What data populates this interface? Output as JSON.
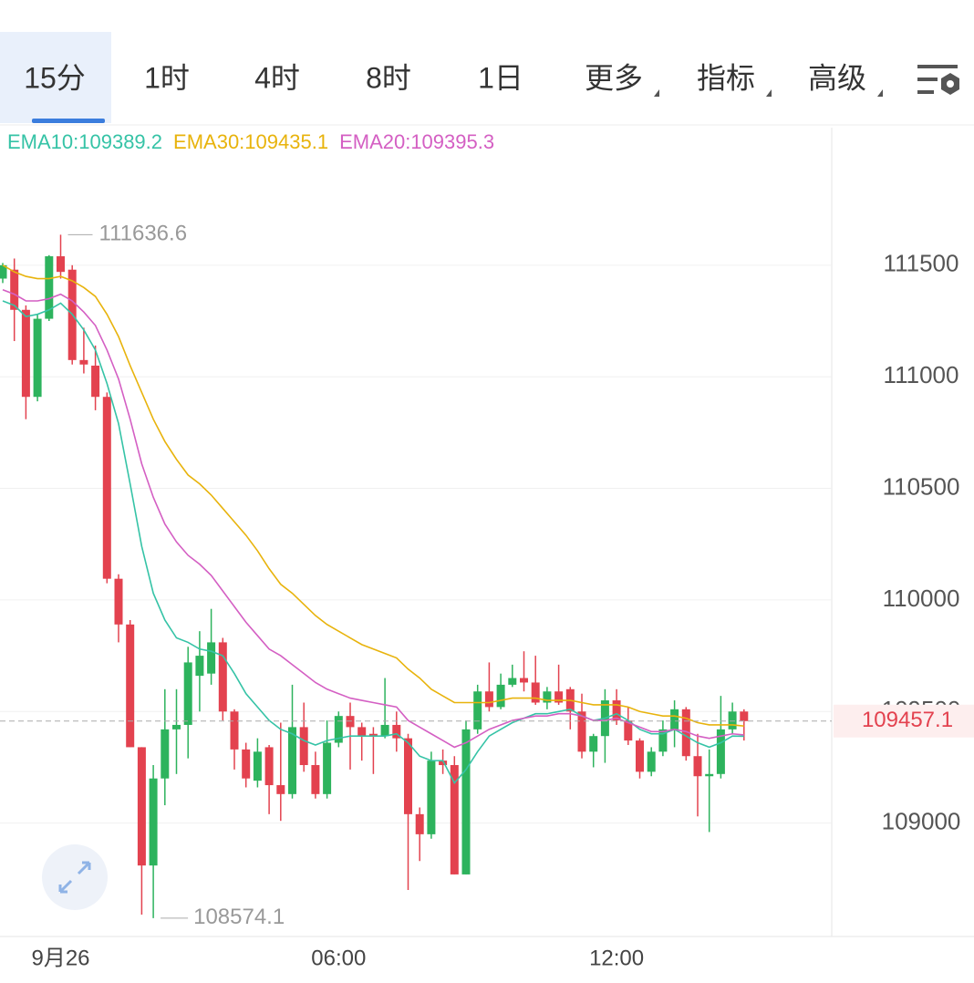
{
  "tabs": [
    "15分",
    "1时",
    "4时",
    "8时",
    "1日",
    "更多",
    "指标",
    "高级"
  ],
  "chart_data": {
    "type": "candlestick",
    "categories": [
      null,
      null,
      null,
      null,
      null,
      "9月26",
      null,
      null,
      null,
      null,
      null,
      null,
      null,
      null,
      null,
      null,
      null,
      null,
      null,
      null,
      null,
      null,
      null,
      null,
      null,
      null,
      null,
      null,
      null,
      "06:00",
      null,
      null,
      null,
      null,
      null,
      null,
      null,
      null,
      null,
      null,
      null,
      null,
      null,
      null,
      null,
      null,
      null,
      null,
      null,
      null,
      null,
      null,
      null,
      "12:00",
      null,
      null,
      null,
      null,
      null,
      null,
      null,
      null,
      null,
      null,
      null
    ],
    "open": [
      111440,
      111480,
      111300,
      110910,
      111260,
      111540,
      111480,
      111075,
      111050,
      110910,
      110095,
      109890,
      109340,
      108810,
      109200,
      109420,
      109440,
      109660,
      109670,
      109810,
      109500,
      109330,
      109190,
      109340,
      109170,
      109130,
      109430,
      109260,
      109130,
      109360,
      109480,
      109430,
      109400,
      109390,
      109440,
      109380,
      109040,
      108950,
      109280,
      109260,
      108770,
      109420,
      109590,
      109520,
      109620,
      109650,
      109630,
      109540,
      109590,
      109600,
      109500,
      109320,
      109390,
      109550,
      109460,
      109370,
      109230,
      109320,
      109420,
      109510,
      109300,
      109210,
      109220,
      109420,
      109500
    ],
    "high": [
      111510,
      111530,
      111320,
      111280,
      111545,
      111636.6,
      111500,
      111220,
      111140,
      110930,
      110115,
      109910,
      109340,
      109260,
      109600,
      109600,
      109790,
      109860,
      109960,
      109830,
      109510,
      109360,
      109380,
      109350,
      109450,
      109620,
      109540,
      109320,
      109460,
      109500,
      109540,
      109450,
      109430,
      109650,
      109500,
      109400,
      109070,
      109320,
      109330,
      109300,
      109460,
      109620,
      109720,
      109670,
      109710,
      109770,
      109750,
      109610,
      109710,
      109610,
      109580,
      109400,
      109600,
      109600,
      109520,
      109380,
      109340,
      109460,
      109550,
      109520,
      109400,
      109330,
      109570,
      109540,
      109510
    ],
    "low": [
      111420,
      111160,
      110810,
      110890,
      111250,
      111440,
      111055,
      111015,
      110850,
      110075,
      109810,
      109340,
      108590,
      108574.1,
      109080,
      109220,
      109290,
      109500,
      109620,
      109460,
      109240,
      109160,
      109160,
      109040,
      109010,
      109110,
      109230,
      109110,
      109110,
      109340,
      109240,
      109280,
      109220,
      109380,
      109320,
      108700,
      108830,
      108930,
      109220,
      108770,
      108770,
      109400,
      109500,
      109510,
      109610,
      109590,
      109530,
      109510,
      109530,
      109420,
      109290,
      109250,
      109270,
      109440,
      109350,
      109200,
      109210,
      109300,
      109340,
      109280,
      109030,
      108960,
      109200,
      109400,
      109370
    ],
    "close": [
      111500,
      111300,
      110910,
      111260,
      111540,
      111470,
      111075,
      111055,
      110910,
      110095,
      109890,
      109340,
      108810,
      109200,
      109420,
      109440,
      109720,
      109750,
      109810,
      109500,
      109330,
      109200,
      109320,
      109170,
      109130,
      109430,
      109260,
      109130,
      109360,
      109480,
      109430,
      109390,
      109390,
      109440,
      109380,
      109040,
      108950,
      109280,
      109260,
      108770,
      109420,
      109590,
      109520,
      109620,
      109650,
      109630,
      109540,
      109590,
      109540,
      109500,
      109320,
      109390,
      109550,
      109460,
      109370,
      109230,
      109320,
      109420,
      109510,
      109300,
      109210,
      109220,
      109420,
      109500,
      109457.1
    ],
    "up_color": "#2db35d",
    "down_color": "#e3424f",
    "series": [
      {
        "name": "EMA10:109389.2",
        "color": "#35c3a6",
        "values": [
          111340,
          111320,
          111270,
          111280,
          111300,
          111330,
          111280,
          111210,
          111120,
          110970,
          110790,
          110520,
          110240,
          110030,
          109910,
          109830,
          109810,
          109780,
          109770,
          109750,
          109670,
          109580,
          109520,
          109460,
          109420,
          109400,
          109370,
          109350,
          109370,
          109380,
          109390,
          109390,
          109390,
          109390,
          109400,
          109360,
          109300,
          109280,
          109280,
          109180,
          109240,
          109320,
          109390,
          109420,
          109450,
          109470,
          109490,
          109490,
          109500,
          109510,
          109480,
          109460,
          109470,
          109490,
          109460,
          109420,
          109400,
          109400,
          109420,
          109390,
          109360,
          109340,
          109360,
          109390,
          109389.2
        ]
      },
      {
        "name": "EMA30:109435.1",
        "color": "#e8b30c",
        "values": [
          111500,
          111470,
          111450,
          111440,
          111440,
          111450,
          111430,
          111400,
          111360,
          111280,
          111180,
          111050,
          110930,
          110810,
          110710,
          110630,
          110560,
          110520,
          110470,
          110410,
          110350,
          110290,
          110220,
          110140,
          110070,
          110030,
          109980,
          109930,
          109890,
          109860,
          109830,
          109800,
          109780,
          109760,
          109740,
          109690,
          109650,
          109600,
          109570,
          109540,
          109540,
          109540,
          109540,
          109550,
          109560,
          109560,
          109560,
          109550,
          109550,
          109550,
          109540,
          109530,
          109530,
          109530,
          109520,
          109500,
          109490,
          109480,
          109480,
          109470,
          109450,
          109440,
          109440,
          109440,
          109435.1
        ]
      },
      {
        "name": "EMA20:109395.3",
        "color": "#d45fc3",
        "values": [
          111390,
          111370,
          111340,
          111340,
          111350,
          111370,
          111340,
          111290,
          111230,
          111120,
          110990,
          110810,
          110610,
          110460,
          110340,
          110260,
          110200,
          110160,
          110110,
          110040,
          109970,
          109900,
          109840,
          109780,
          109750,
          109710,
          109670,
          109630,
          109600,
          109580,
          109560,
          109550,
          109540,
          109530,
          109520,
          109460,
          109430,
          109400,
          109370,
          109340,
          109360,
          109390,
          109420,
          109440,
          109460,
          109470,
          109480,
          109480,
          109490,
          109490,
          109480,
          109460,
          109460,
          109470,
          109450,
          109430,
          109410,
          109410,
          109420,
          109410,
          109390,
          109380,
          109390,
          109400,
          109395.3
        ]
      }
    ],
    "ylim": [
      108500,
      112100
    ],
    "yticks": [
      109000,
      109500,
      110000,
      110500,
      111000,
      111500
    ],
    "grid": true
  }
}
